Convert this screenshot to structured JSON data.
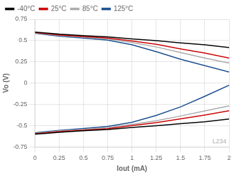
{
  "chart_data": {
    "type": "line",
    "xlabel": "Iout (mA)",
    "ylabel": "Vo (V)",
    "x": [
      0,
      0.1,
      0.25,
      0.5,
      0.75,
      1.0,
      1.25,
      1.5,
      1.75,
      2.0
    ],
    "series": [
      {
        "name": "-40°C",
        "color": "#000000",
        "values": [
          0.6,
          0.59,
          0.575,
          0.558,
          0.543,
          0.52,
          0.498,
          0.473,
          0.45,
          0.418
        ]
      },
      {
        "color": "#000000",
        "values": [
          -0.6,
          -0.592,
          -0.578,
          -0.561,
          -0.545,
          -0.522,
          -0.502,
          -0.477,
          -0.455,
          -0.422
        ]
      },
      {
        "name": "25°C",
        "color": "#cc0000",
        "values": [
          0.595,
          0.583,
          0.566,
          0.548,
          0.53,
          0.495,
          0.456,
          0.402,
          0.353,
          0.295
        ]
      },
      {
        "color": "#cc0000",
        "values": [
          -0.595,
          -0.586,
          -0.57,
          -0.553,
          -0.535,
          -0.5,
          -0.465,
          -0.42,
          -0.375,
          -0.325
        ]
      },
      {
        "name": "85°C",
        "color": "#aaaaaa",
        "values": [
          0.59,
          0.577,
          0.559,
          0.54,
          0.52,
          0.477,
          0.425,
          0.36,
          0.295,
          0.235
        ]
      },
      {
        "color": "#aaaaaa",
        "values": [
          -0.59,
          -0.58,
          -0.563,
          -0.545,
          -0.524,
          -0.486,
          -0.442,
          -0.387,
          -0.328,
          -0.268
        ]
      },
      {
        "name": "125°C",
        "color": "#1a4d8f",
        "values": [
          0.585,
          0.571,
          0.551,
          0.53,
          0.505,
          0.45,
          0.37,
          0.28,
          0.205,
          0.13
        ]
      },
      {
        "color": "#1a4d8f",
        "values": [
          -0.585,
          -0.573,
          -0.555,
          -0.534,
          -0.51,
          -0.46,
          -0.38,
          -0.28,
          -0.155,
          -0.025
        ]
      }
    ],
    "xlim": [
      0,
      2
    ],
    "ylim": [
      -0.75,
      0.75
    ],
    "xticks": [
      0,
      0.25,
      0.5,
      0.75,
      1,
      1.25,
      1.5,
      1.75,
      2
    ],
    "yticks": [
      -0.75,
      -0.5,
      -0.25,
      0,
      0.25,
      0.5,
      0.75
    ],
    "grid": true,
    "legend": "upper left",
    "annotations": [
      "L234"
    ]
  }
}
